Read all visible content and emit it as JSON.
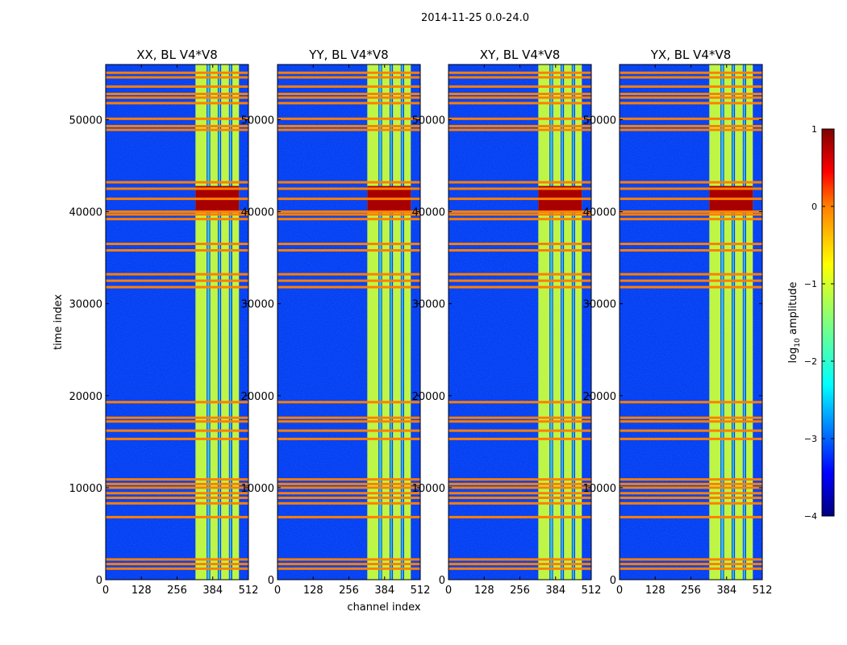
{
  "suptitle": "2014-11-25 0.0-24.0",
  "chart_data": [
    {
      "type": "heatmap",
      "title": "XX, BL V4*V8",
      "xlabel": "",
      "ylabel": "time index",
      "xlim": [
        0,
        512
      ],
      "ylim": [
        0,
        56000
      ],
      "xticks": [
        0,
        128,
        256,
        384,
        512
      ],
      "xtick_labels": [
        "0",
        "128",
        "256",
        "384",
        "512"
      ],
      "yticks": [
        0,
        10000,
        20000,
        30000,
        40000,
        50000
      ],
      "ytick_labels": [
        "0",
        "10000",
        "20000",
        "30000",
        "40000",
        "50000"
      ]
    },
    {
      "type": "heatmap",
      "title": "YY, BL V4*V8",
      "xlabel": "channel index",
      "ylabel": "",
      "xlim": [
        0,
        512
      ],
      "ylim": [
        0,
        56000
      ],
      "xticks": [
        0,
        128,
        256,
        384,
        512
      ],
      "xtick_labels": [
        "0",
        "128",
        "256",
        "384",
        "512"
      ],
      "yticks": [
        0,
        10000,
        20000,
        30000,
        40000,
        50000
      ],
      "ytick_labels": [
        "0",
        "10000",
        "20000",
        "30000",
        "40000",
        "50000"
      ]
    },
    {
      "type": "heatmap",
      "title": "XY, BL V4*V8",
      "xlabel": "",
      "ylabel": "",
      "xlim": [
        0,
        512
      ],
      "ylim": [
        0,
        56000
      ],
      "xticks": [
        0,
        128,
        256,
        384,
        512
      ],
      "xtick_labels": [
        "0",
        "128",
        "256",
        "384",
        "512"
      ],
      "yticks": [
        0,
        10000,
        20000,
        30000,
        40000,
        50000
      ],
      "ytick_labels": [
        "0",
        "10000",
        "20000",
        "30000",
        "40000",
        "50000"
      ]
    },
    {
      "type": "heatmap",
      "title": "YX, BL V4*V8",
      "xlabel": "",
      "ylabel": "",
      "xlim": [
        0,
        512
      ],
      "ylim": [
        0,
        56000
      ],
      "xticks": [
        0,
        128,
        256,
        384,
        512
      ],
      "xtick_labels": [
        "0",
        "128",
        "256",
        "384",
        "512"
      ],
      "yticks": [
        0,
        10000,
        20000,
        30000,
        40000,
        50000
      ],
      "ytick_labels": [
        "0",
        "10000",
        "20000",
        "30000",
        "40000",
        "50000"
      ]
    }
  ],
  "features": {
    "flag_rows": [
      1200,
      1700,
      2200,
      6800,
      8300,
      8900,
      9400,
      10000,
      10400,
      10900,
      15300,
      16200,
      17200,
      17600,
      19300,
      31800,
      32500,
      33200,
      35800,
      36500,
      39200,
      39700,
      40000,
      41400,
      42500,
      43200,
      48900,
      49300,
      50100,
      51800,
      52400,
      52800,
      53600,
      54600,
      55100
    ],
    "rfi_band_channels": [
      [
        322,
        362
      ],
      [
        365,
        372
      ],
      [
        375,
        402
      ],
      [
        405,
        410
      ],
      [
        414,
        442
      ],
      [
        445,
        450
      ],
      [
        454,
        478
      ]
    ],
    "saturation_rows": [
      40000,
      42800
    ]
  },
  "colorbar": {
    "label": "log10 amplitude",
    "label_main": "log",
    "label_sub": "10",
    "label_rest": " amplitude",
    "vmin": -4,
    "vmax": 1,
    "ticks": [
      1,
      0,
      -1,
      -2,
      -3,
      -4
    ],
    "tick_labels": [
      "1",
      "0",
      "−1",
      "−2",
      "−3",
      "−4"
    ],
    "colors": [
      "#00007f",
      "#0000ff",
      "#007fff",
      "#00ffff",
      "#7fff7f",
      "#ffff00",
      "#ff7f00",
      "#ff0000",
      "#7f0000"
    ]
  }
}
